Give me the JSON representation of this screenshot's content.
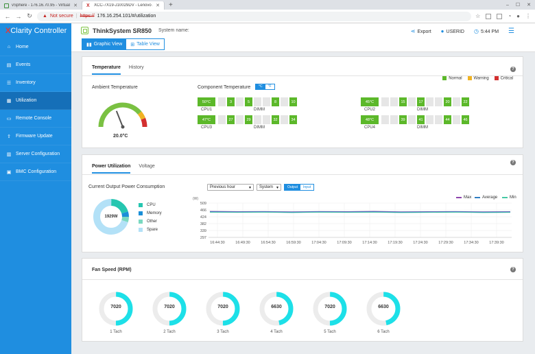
{
  "browser": {
    "tabs": [
      {
        "title": "vSphere - 176.16.70.95 - Virtual …",
        "color": "#3b8f3b"
      },
      {
        "title": "XCC-7X19-J10029DV - Lenovo X…",
        "color": "#c62828"
      }
    ],
    "not_secure": "Not secure",
    "url_proto": "https://",
    "url_rest": "176.16.254.101/#/utilization"
  },
  "sidebar": {
    "brand_x": "X",
    "brand_rest": "Clarity Controller",
    "items": [
      {
        "label": "Home",
        "icon": "home-icon",
        "glyph": "⌂"
      },
      {
        "label": "Events",
        "icon": "events-icon",
        "glyph": "▤"
      },
      {
        "label": "Inventory",
        "icon": "inventory-icon",
        "glyph": "☰"
      },
      {
        "label": "Utilization",
        "icon": "utilization-icon",
        "glyph": "▦"
      },
      {
        "label": "Remote Console",
        "icon": "console-icon",
        "glyph": "▭"
      },
      {
        "label": "Firmware Update",
        "icon": "firmware-icon",
        "glyph": "⇪"
      },
      {
        "label": "Server Configuration",
        "icon": "server-icon",
        "glyph": "▥"
      },
      {
        "label": "BMC Configuration",
        "icon": "bmc-icon",
        "glyph": "▣"
      }
    ],
    "active": "Utilization"
  },
  "header": {
    "model": "ThinkSystem SR850",
    "system_name_label": "System name:",
    "view_graphic": "Graphic View",
    "view_table": "Table View",
    "export": "Export",
    "user": "USERID",
    "time": "5:44 PM"
  },
  "temperature": {
    "tab_temp": "Temperature",
    "tab_history": "History",
    "ambient_label": "Ambient Temperature",
    "ambient_value": "20.0°C",
    "ambient_gauge_fraction": 0.38,
    "component_label": "Component Temperature",
    "unit_c": "°C",
    "unit_f": "°F",
    "legend": [
      {
        "label": "Normal",
        "color": "#5cb82a"
      },
      {
        "label": "Warning",
        "color": "#f0b323"
      },
      {
        "label": "Critical",
        "color": "#d32f2f"
      }
    ],
    "groups": [
      {
        "cpu": "CPU1",
        "cpu_temp": "50°C",
        "dimm": [
          null,
          "3",
          null,
          "5",
          null,
          null,
          "8",
          null,
          "10"
        ]
      },
      {
        "cpu": "CPU2",
        "cpu_temp": "45°C",
        "dimm": [
          null,
          null,
          "15",
          null,
          "17",
          null,
          null,
          "20",
          null,
          "22"
        ]
      },
      {
        "cpu": "CPU3",
        "cpu_temp": "47°C",
        "dimm": [
          null,
          "27",
          null,
          "29",
          null,
          null,
          "32",
          null,
          "34"
        ]
      },
      {
        "cpu": "CPU4",
        "cpu_temp": "48°C",
        "dimm": [
          null,
          null,
          "39",
          null,
          "41",
          null,
          null,
          "44",
          null,
          "46"
        ]
      }
    ],
    "dimm_label": "DIMM"
  },
  "power": {
    "tab_power": "Power Utilization",
    "tab_voltage": "Voltage",
    "consumption_label": "Current Output Power Consumption",
    "period": "Previous hour",
    "scope": "System",
    "toggle_output": "Output",
    "toggle_input": "Input",
    "donut_value": "1929W",
    "donut": [
      {
        "label": "CPU",
        "fraction": 0.2,
        "color": "#26c6b0"
      },
      {
        "label": "Memory",
        "fraction": 0.05,
        "color": "#1a8fd8"
      },
      {
        "label": "Other",
        "fraction": 0.05,
        "color": "#7ad9c0"
      },
      {
        "label": "Spare",
        "fraction": 0.7,
        "color": "#b3e1f7"
      }
    ],
    "chart_legend": [
      {
        "label": "Max",
        "color": "#8e44ad"
      },
      {
        "label": "Average",
        "color": "#2e7dc2"
      },
      {
        "label": "Min",
        "color": "#45c9a4"
      }
    ]
  },
  "chart_data": {
    "type": "line",
    "ylabel": "(W)",
    "y_ticks": [
      "509",
      "466",
      "424",
      "382",
      "339",
      "297"
    ],
    "y_tick_values": [
      509,
      466,
      424,
      382,
      339,
      297
    ],
    "ylim": [
      297,
      509
    ],
    "x": [
      "16:44:30",
      "16:49:30",
      "16:54:30",
      "16:59:30",
      "17:04:30",
      "17:09:30",
      "17:14:30",
      "17:19:30",
      "17:24:30",
      "17:29:30",
      "17:34:30",
      "17:39:30"
    ],
    "series": [
      {
        "name": "Max",
        "color": "#8e44ad",
        "values": [
          458,
          456,
          457,
          455,
          457,
          456,
          458,
          455,
          456,
          457,
          455,
          456
        ]
      },
      {
        "name": "Average",
        "color": "#2e7dc2",
        "values": [
          455,
          454,
          455,
          453,
          455,
          454,
          455,
          453,
          454,
          455,
          453,
          454
        ]
      },
      {
        "name": "Min",
        "color": "#45c9a4",
        "values": [
          452,
          451,
          452,
          450,
          452,
          451,
          452,
          450,
          451,
          452,
          450,
          451
        ]
      }
    ]
  },
  "fans": {
    "title": "Fan Speed (RPM)",
    "items": [
      {
        "label": "1 Tach",
        "rpm": "7020",
        "fraction": 0.5
      },
      {
        "label": "2 Tach",
        "rpm": "7020",
        "fraction": 0.5
      },
      {
        "label": "3 Tach",
        "rpm": "7020",
        "fraction": 0.5
      },
      {
        "label": "4 Tach",
        "rpm": "6630",
        "fraction": 0.47
      },
      {
        "label": "5 Tach",
        "rpm": "7020",
        "fraction": 0.5
      },
      {
        "label": "6 Tach",
        "rpm": "6630",
        "fraction": 0.47
      }
    ]
  }
}
